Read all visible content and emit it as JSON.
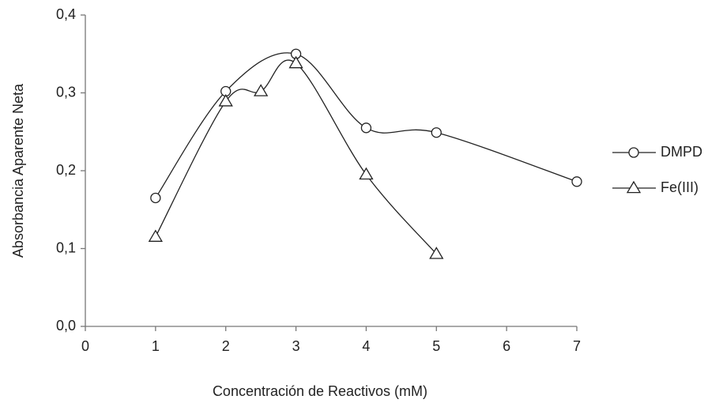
{
  "chart_data": {
    "type": "line",
    "x_label": "Concentración de Reactivos (mM)",
    "y_label": "Absorbancia Aparente Neta",
    "xlim": [
      0,
      7
    ],
    "xticks": [
      0,
      1,
      2,
      3,
      4,
      5,
      6,
      7
    ],
    "ylim": [
      0,
      0.4
    ],
    "yticks": [
      {
        "value": 0,
        "label": "0,0"
      },
      {
        "value": 0.1,
        "label": "0,1"
      },
      {
        "value": 0.2,
        "label": "0,2"
      },
      {
        "value": 0.3,
        "label": "0,3"
      },
      {
        "value": 0.4,
        "label": "0,4"
      }
    ],
    "grid": false,
    "smooth": true,
    "legend": "right",
    "series": [
      {
        "name": "DMPD",
        "color": "#222222",
        "marker": "circle",
        "x": [
          1,
          2,
          3,
          4,
          5,
          7
        ],
        "values": [
          0.165,
          0.302,
          0.35,
          0.255,
          0.249,
          0.186
        ]
      },
      {
        "name": "Fe(III)",
        "color": "#222222",
        "marker": "triangle",
        "x": [
          1,
          2,
          2.5,
          3,
          4,
          5
        ],
        "values": [
          0.115,
          0.289,
          0.302,
          0.338,
          0.195,
          0.093
        ]
      }
    ]
  }
}
